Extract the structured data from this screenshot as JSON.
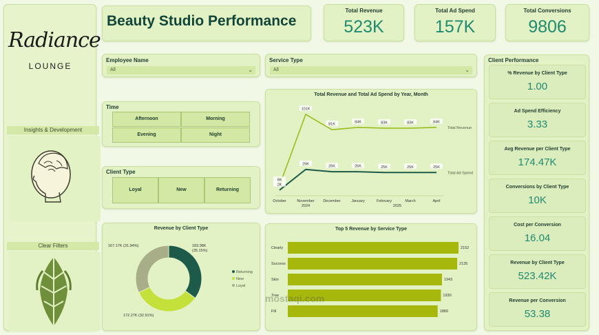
{
  "sidebar": {
    "logo_text": "Radiance",
    "logo_subtext": "LOUNGE",
    "insights_label": "Insights & Development",
    "clear_filters_label": "Clear Filters"
  },
  "header": {
    "title": "Beauty Studio Performance"
  },
  "kpis": [
    {
      "label": "Total Revenue",
      "value": "523K"
    },
    {
      "label": "Total Ad Spend",
      "value": "157K"
    },
    {
      "label": "Total Conversions",
      "value": "9806"
    }
  ],
  "filters": {
    "employee": {
      "label": "Employee Name",
      "value": "All"
    },
    "service": {
      "label": "Service Type",
      "value": "All"
    }
  },
  "time_slicer": {
    "label": "Time",
    "options": [
      "Afternoon",
      "Morning",
      "Evening",
      "Night"
    ]
  },
  "client_slicer": {
    "label": "Client Type",
    "options": [
      "Loyal",
      "New",
      "Returning"
    ]
  },
  "colors": {
    "accent": "#1f8a70",
    "dark_line": "#1d5a4a",
    "light_line": "#9dbb1e",
    "bar": "#a6b80c",
    "returning": "#1d5a4a",
    "new": "#c4e03a",
    "loyal": "#a7ae88"
  },
  "chart_data": [
    {
      "type": "line",
      "title": "Total Revenue and Total Ad Spend by Year, Month",
      "categories": [
        "October",
        "November",
        "December",
        "January",
        "February",
        "March",
        "April"
      ],
      "year_labels": [
        "2024",
        "2025"
      ],
      "series": [
        {
          "name": "Total Revenue",
          "values": [
            8,
            101,
            81,
            84,
            83,
            83,
            84
          ],
          "labels": [
            "8K",
            "101K",
            "81K",
            "84K",
            "83K",
            "83K",
            "84K"
          ]
        },
        {
          "name": "Total Ad Spend",
          "values": [
            2,
            29,
            26,
            26,
            25,
            25,
            25
          ],
          "labels": [
            "2K",
            "29K",
            "26K",
            "26K",
            "25K",
            "25K",
            "25K"
          ]
        }
      ],
      "ylim": [
        0,
        110
      ]
    },
    {
      "type": "pie",
      "title": "Revenue by Client Type",
      "slices": [
        {
          "name": "Returning",
          "value": 183.98,
          "label": "183.98K (35.15%)"
        },
        {
          "name": "New",
          "value": 172.27,
          "label": "172.27K (32.91%)"
        },
        {
          "name": "Loyal",
          "value": 167.17,
          "label": "167.17K (31.94%)"
        }
      ]
    },
    {
      "type": "bar",
      "title": "Top 5 Revenue by Service Type",
      "categories": [
        "Clearly",
        "Success",
        "Skin",
        "Tree",
        "Fill"
      ],
      "values": [
        2152,
        2135,
        1943,
        1930,
        1889
      ],
      "labels": [
        "2152",
        "2135",
        "1943",
        "1930",
        "1889"
      ]
    }
  ],
  "client_performance": {
    "title": "Client Performance",
    "cards": [
      {
        "label": "% Revenue by Client Type",
        "value": "1.00"
      },
      {
        "label": "Ad Spend Efficiency",
        "value": "3.33"
      },
      {
        "label": "Avg Revenue per Client Type",
        "value": "174.47K"
      },
      {
        "label": "Conversions by Client Type",
        "value": "10K"
      },
      {
        "label": "Cost per Conversion",
        "value": "16.04"
      },
      {
        "label": "Revenue by Client Type",
        "value": "523.42K"
      },
      {
        "label": "Revenue per Conversion",
        "value": "53.38"
      }
    ]
  },
  "watermark": "mostaqi.com"
}
